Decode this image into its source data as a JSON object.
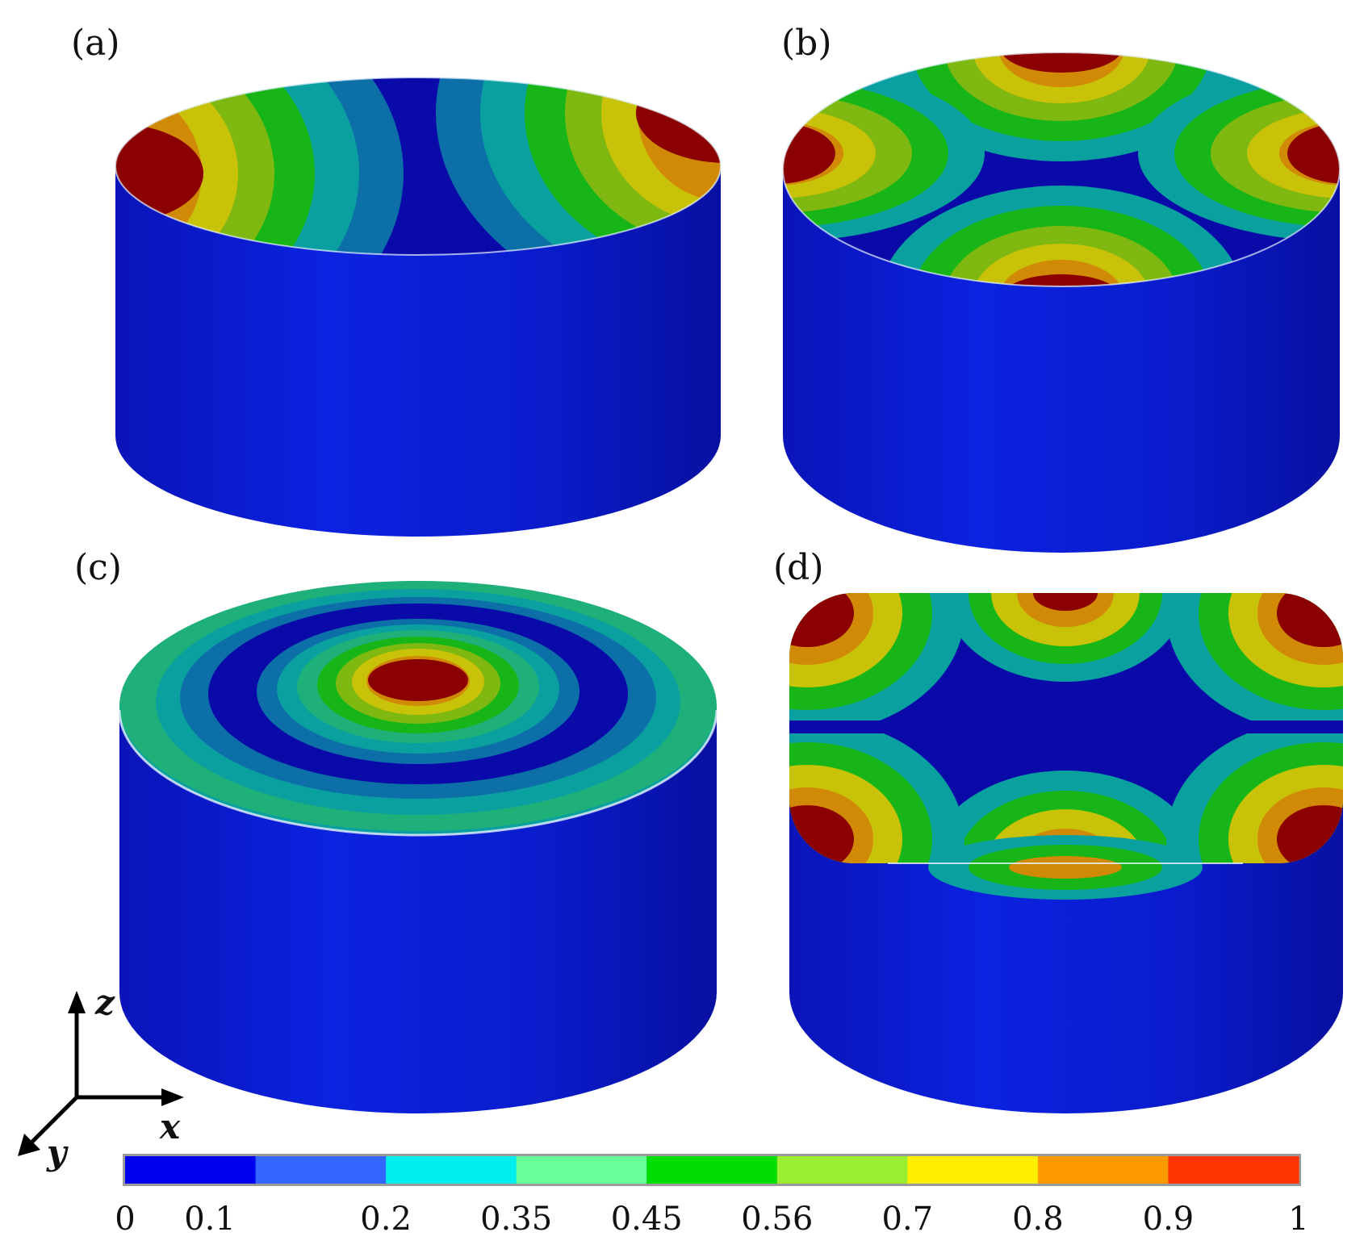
{
  "figure": {
    "panels": [
      {
        "label": "(a)",
        "mode": "two-lobe"
      },
      {
        "label": "(b)",
        "mode": "four-lobe"
      },
      {
        "label": "(c)",
        "mode": "axisymmetric-ring"
      },
      {
        "label": "(d)",
        "mode": "six-lobe"
      }
    ],
    "axes": {
      "z": "z",
      "x": "x",
      "y": "y"
    }
  },
  "colorbar": {
    "ticks": [
      "0",
      "0.1",
      "0.2",
      "0.35",
      "0.45",
      "0.56",
      "0.7",
      "0.8",
      "0.9",
      "1"
    ],
    "bands": [
      "#0000ee",
      "#3366ff",
      "#00eeee",
      "#66ff99",
      "#00dd00",
      "#99ee33",
      "#ffee00",
      "#ff9900",
      "#ff3300"
    ]
  },
  "palette": {
    "side": "#0b1fd0",
    "contour": [
      "#0a0aa8",
      "#0d6fa8",
      "#0aa0a0",
      "#1fb07a",
      "#17b517",
      "#7fb810",
      "#c8c208",
      "#d08a06",
      "#8b0000"
    ]
  }
}
